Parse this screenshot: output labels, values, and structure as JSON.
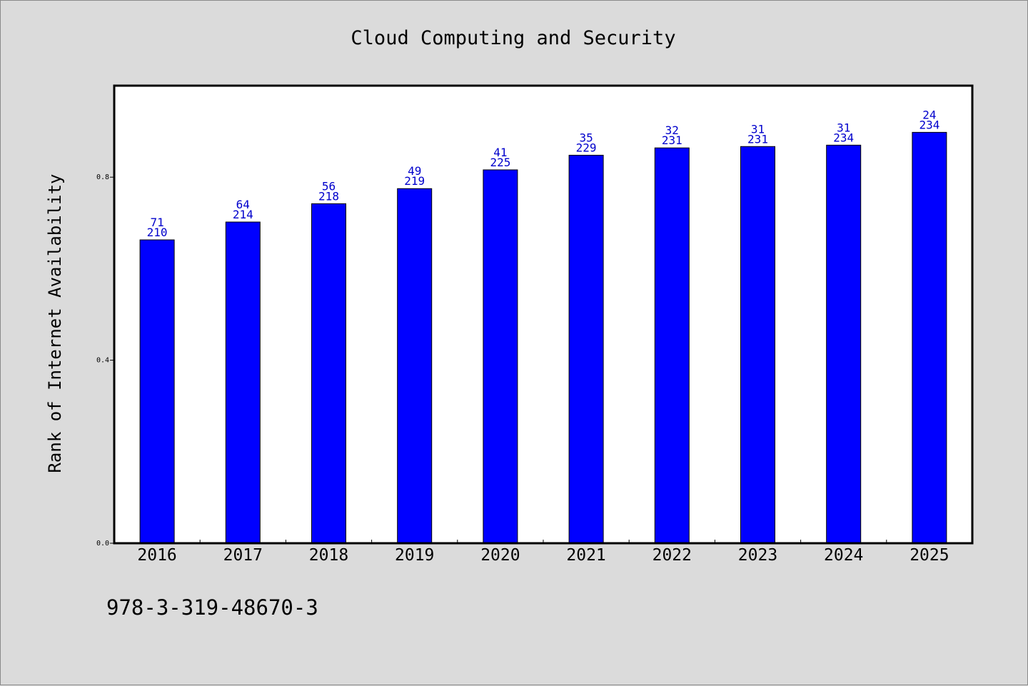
{
  "chart_data": {
    "type": "bar",
    "title": "Cloud Computing and Security",
    "xlabel": "",
    "ylabel": "Rank of Internet Availability",
    "ylim": [
      0,
      1.0
    ],
    "yticks": [
      "0.0",
      "0.4",
      "0.8"
    ],
    "ytick_values": [
      0.0,
      0.4,
      0.8
    ],
    "grid": false,
    "categories": [
      "2016",
      "2017",
      "2018",
      "2019",
      "2020",
      "2021",
      "2022",
      "2023",
      "2024",
      "2025"
    ],
    "values": [
      0.663,
      0.702,
      0.742,
      0.775,
      0.816,
      0.848,
      0.864,
      0.867,
      0.87,
      0.898
    ],
    "labels_top": [
      "71",
      "64",
      "56",
      "49",
      "41",
      "35",
      "32",
      "31",
      "31",
      "24"
    ],
    "labels_bottom": [
      "210",
      "214",
      "218",
      "219",
      "225",
      "229",
      "231",
      "231",
      "234",
      "234"
    ],
    "bar_color": "#0000ff",
    "label_color": "#0000cc"
  },
  "footer": {
    "isbn": "978-3-319-48670-3"
  }
}
